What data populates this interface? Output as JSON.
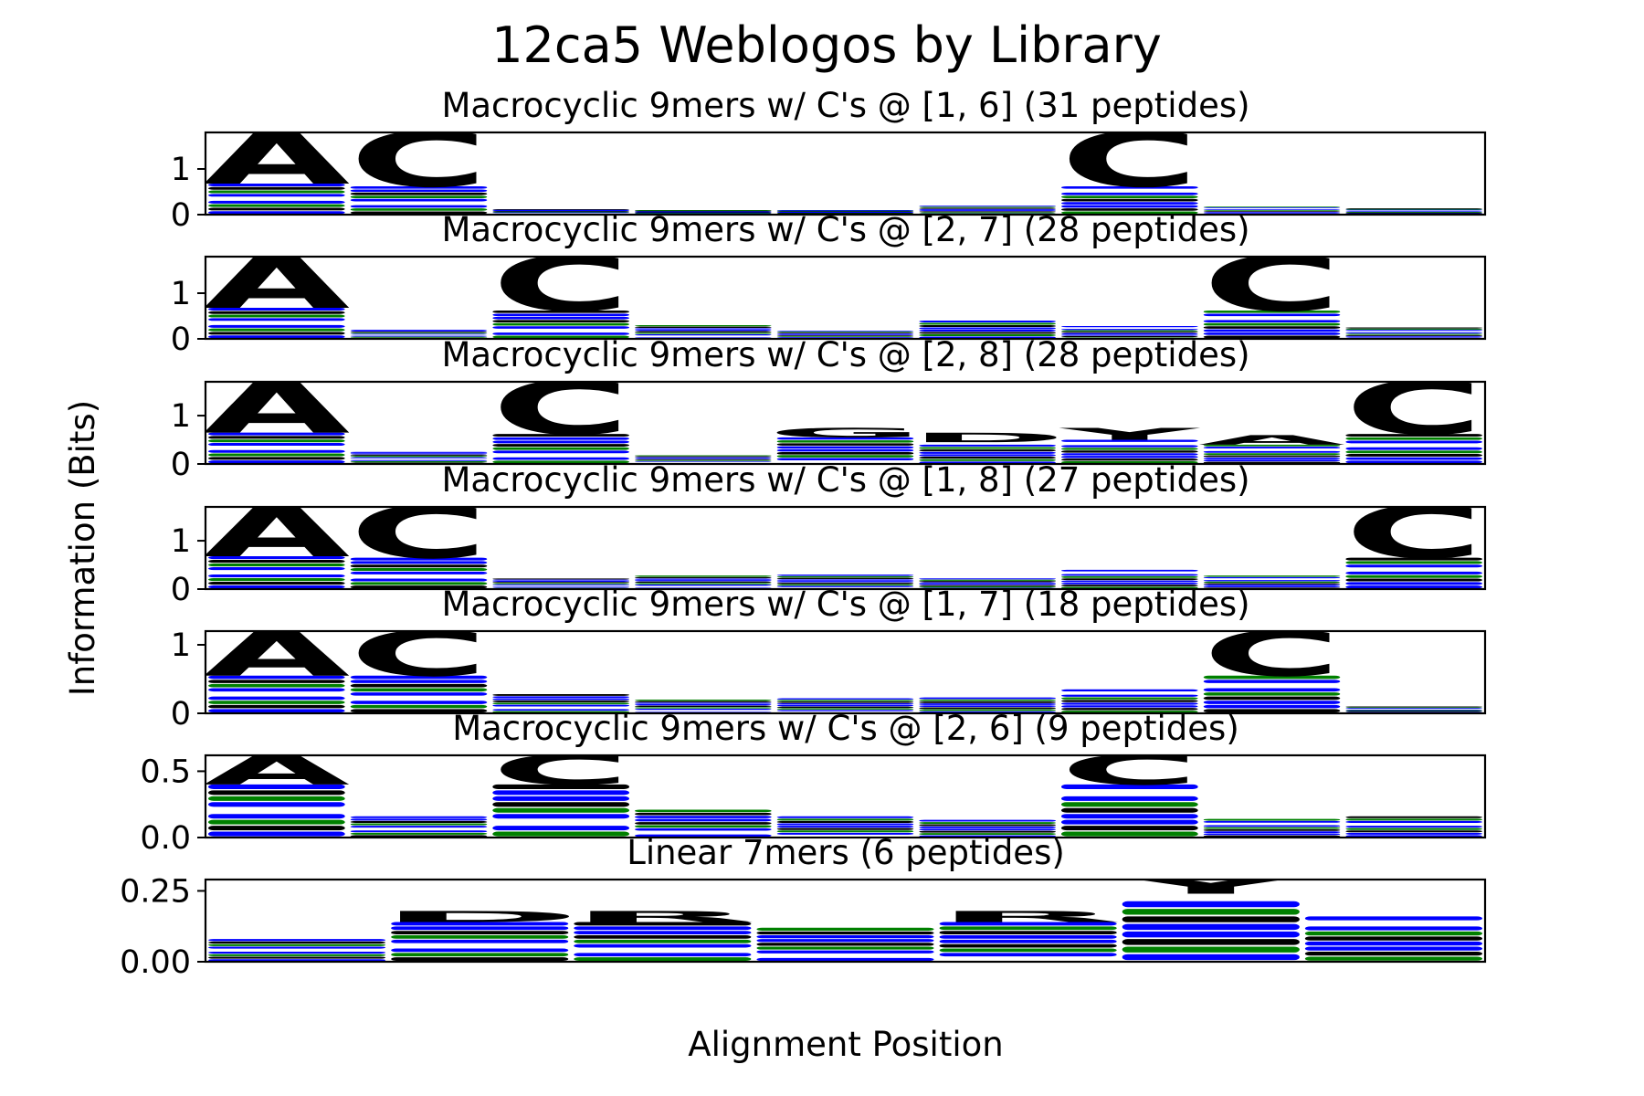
{
  "figure": {
    "title": "12ca5 Weblogos by Library",
    "xlabel": "Alignment Position",
    "ylabel": "Information (Bits)"
  },
  "colors": {
    "green": "#008000",
    "blue": "#0000ff",
    "black": "#000000"
  },
  "chart_data": [
    {
      "type": "sequence-logo",
      "title": "Macrocyclic 9mers w/ C's @ [1, 6] (31 peptides)",
      "positions": 9,
      "ylim": [
        0,
        1.8
      ],
      "yticks": [
        0,
        1
      ],
      "ytick_labels": [
        "0",
        "1"
      ],
      "columns": [
        {
          "top": "A",
          "top_color": "green",
          "stack": 0.68,
          "total": 1.85
        },
        {
          "top": "C",
          "top_color": "black",
          "stack": 0.62,
          "total": 1.85
        },
        {
          "total": 0.12
        },
        {
          "total": 0.1
        },
        {
          "total": 0.1
        },
        {
          "total": 0.22
        },
        {
          "top": "C",
          "top_color": "black",
          "stack": 0.62,
          "total": 1.85
        },
        {
          "total": 0.18
        },
        {
          "total": 0.14
        }
      ]
    },
    {
      "type": "sequence-logo",
      "title": "Macrocyclic 9mers w/ C's @ [2, 7] (28 peptides)",
      "positions": 9,
      "ylim": [
        0,
        1.8
      ],
      "yticks": [
        0,
        1
      ],
      "ytick_labels": [
        "0",
        "1"
      ],
      "columns": [
        {
          "top": "A",
          "top_color": "green",
          "stack": 0.68,
          "total": 1.85
        },
        {
          "total": 0.2
        },
        {
          "top": "C",
          "top_color": "black",
          "stack": 0.62,
          "total": 1.85
        },
        {
          "total": 0.3
        },
        {
          "total": 0.18
        },
        {
          "total": 0.45
        },
        {
          "total": 0.28
        },
        {
          "top": "C",
          "top_color": "black",
          "stack": 0.62,
          "total": 1.85
        },
        {
          "total": 0.25
        }
      ]
    },
    {
      "type": "sequence-logo",
      "title": "Macrocyclic 9mers w/ C's @ [2, 8] (28 peptides)",
      "positions": 9,
      "ylim": [
        0,
        1.7
      ],
      "yticks": [
        0,
        1
      ],
      "ytick_labels": [
        "0",
        "1"
      ],
      "columns": [
        {
          "top": "A",
          "top_color": "green",
          "stack": 0.65,
          "total": 1.75
        },
        {
          "total": 0.25
        },
        {
          "top": "C",
          "top_color": "black",
          "stack": 0.62,
          "total": 1.75
        },
        {
          "total": 0.18
        },
        {
          "top": "G",
          "top_color": "green",
          "stack": 0.55,
          "total": 0.75
        },
        {
          "top": "D",
          "top_color": "blue",
          "stack": 0.45,
          "total": 0.65
        },
        {
          "top": "Y",
          "top_color": "black",
          "stack": 0.5,
          "total": 0.75
        },
        {
          "top": "A",
          "top_color": "green",
          "stack": 0.4,
          "total": 0.6
        },
        {
          "top": "C",
          "top_color": "black",
          "stack": 0.62,
          "total": 1.75
        }
      ]
    },
    {
      "type": "sequence-logo",
      "title": "Macrocyclic 9mers w/ C's @ [1, 8] (27 peptides)",
      "positions": 9,
      "ylim": [
        0,
        1.7
      ],
      "yticks": [
        0,
        1
      ],
      "ytick_labels": [
        "0",
        "1"
      ],
      "columns": [
        {
          "top": "A",
          "top_color": "green",
          "stack": 0.68,
          "total": 1.75
        },
        {
          "top": "C",
          "top_color": "black",
          "stack": 0.65,
          "total": 1.75
        },
        {
          "total": 0.22
        },
        {
          "total": 0.28
        },
        {
          "total": 0.3
        },
        {
          "total": 0.25
        },
        {
          "total": 0.4
        },
        {
          "total": 0.28
        },
        {
          "top": "C",
          "top_color": "black",
          "stack": 0.65,
          "total": 1.75
        }
      ]
    },
    {
      "type": "sequence-logo",
      "title": "Macrocyclic 9mers w/ C's @ [1, 7] (18 peptides)",
      "positions": 9,
      "ylim": [
        0,
        1.2
      ],
      "yticks": [
        0,
        1
      ],
      "ytick_labels": [
        "0",
        "1"
      ],
      "columns": [
        {
          "top": "A",
          "top_color": "green",
          "stack": 0.55,
          "total": 1.22
        },
        {
          "top": "C",
          "top_color": "black",
          "stack": 0.55,
          "total": 1.22
        },
        {
          "total": 0.28
        },
        {
          "total": 0.2
        },
        {
          "total": 0.22
        },
        {
          "total": 0.26
        },
        {
          "total": 0.35
        },
        {
          "top": "C",
          "top_color": "black",
          "stack": 0.55,
          "total": 1.22
        },
        {
          "total": 0.1
        }
      ]
    },
    {
      "type": "sequence-logo",
      "title": "Macrocyclic 9mers w/ C's @ [2, 6] (9 peptides)",
      "positions": 9,
      "ylim": [
        0,
        0.62
      ],
      "yticks": [
        0,
        0.5
      ],
      "ytick_labels": [
        "0.0",
        "0.5"
      ],
      "columns": [
        {
          "top": "A",
          "top_color": "green",
          "stack": 0.4,
          "total": 0.63
        },
        {
          "total": 0.16
        },
        {
          "top": "C",
          "top_color": "black",
          "stack": 0.4,
          "total": 0.63
        },
        {
          "total": 0.21
        },
        {
          "total": 0.16
        },
        {
          "total": 0.15
        },
        {
          "top": "C",
          "top_color": "black",
          "stack": 0.4,
          "total": 0.63
        },
        {
          "total": 0.14
        },
        {
          "total": 0.16
        }
      ]
    },
    {
      "type": "sequence-logo",
      "title": "Linear 7mers (6 peptides)",
      "positions": 7,
      "ylim": [
        0,
        0.29
      ],
      "yticks": [
        0,
        0.25
      ],
      "ytick_labels": [
        "0.00",
        "0.25"
      ],
      "columns": [
        {
          "total": 0.08
        },
        {
          "top": "D",
          "top_color": "blue",
          "stack": 0.14,
          "total": 0.18
        },
        {
          "top": "R",
          "top_color": "blue",
          "stack": 0.14,
          "total": 0.18
        },
        {
          "total": 0.12
        },
        {
          "top": "R",
          "top_color": "blue",
          "stack": 0.14,
          "total": 0.18
        },
        {
          "top": "Y",
          "top_color": "black",
          "stack": 0.24,
          "total": 0.3
        },
        {
          "total": 0.16
        }
      ]
    }
  ]
}
